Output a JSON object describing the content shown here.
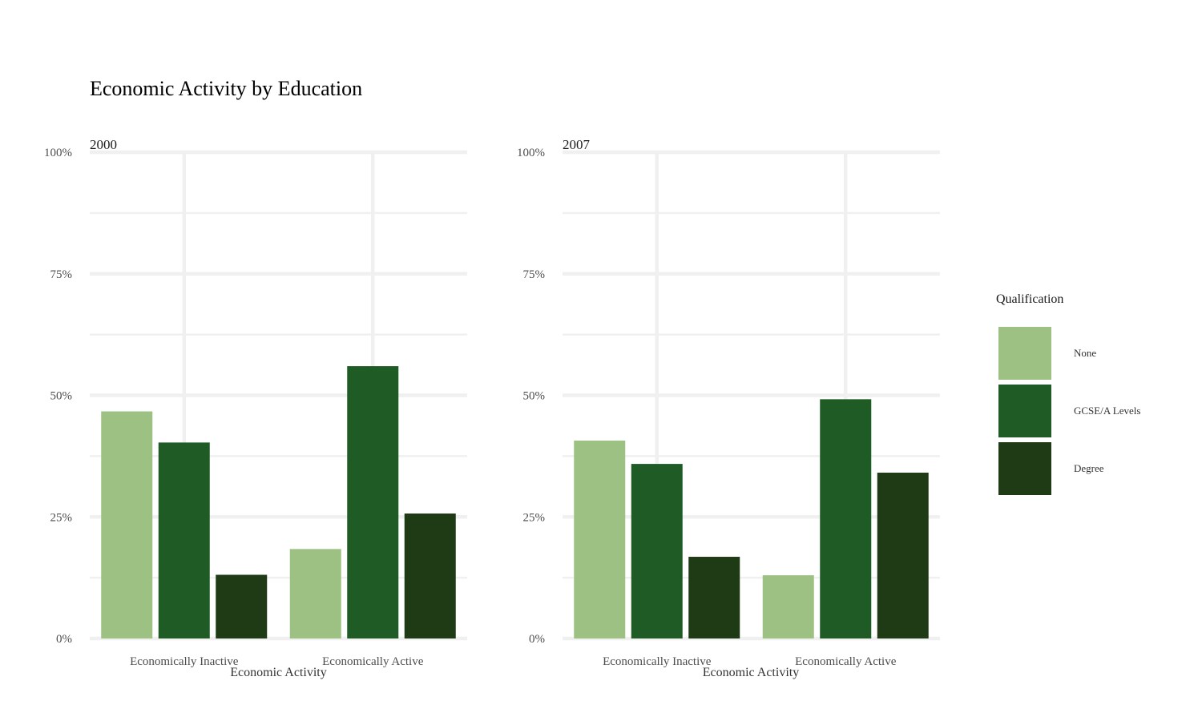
{
  "chart_data": {
    "type": "bar",
    "title": "Economic Activity by Education",
    "xlabel": "Economic Activity",
    "ylabel": "",
    "ylim": [
      0,
      1
    ],
    "y_ticks": [
      "0%",
      "25%",
      "50%",
      "75%",
      "100%"
    ],
    "grid": true,
    "legend": {
      "title": "Qualification",
      "placement": "right",
      "entries": [
        "None",
        "GCSE/A Levels",
        "Degree"
      ]
    },
    "categories": [
      "Economically Inactive",
      "Economically Active"
    ],
    "panels": [
      {
        "label": "2000",
        "series": [
          {
            "name": "None",
            "values": [
              0.467,
              0.184
            ]
          },
          {
            "name": "GCSE/A Levels",
            "values": [
              0.403,
              0.56
            ]
          },
          {
            "name": "Degree",
            "values": [
              0.131,
              0.257
            ]
          }
        ]
      },
      {
        "label": "2007",
        "series": [
          {
            "name": "None",
            "values": [
              0.407,
              0.13
            ]
          },
          {
            "name": "GCSE/A Levels",
            "values": [
              0.359,
              0.492
            ]
          },
          {
            "name": "Degree",
            "values": [
              0.168,
              0.341
            ]
          }
        ]
      }
    ],
    "colors": {
      "None": "#9dc183",
      "GCSE/A Levels": "#1f5b25",
      "Degree": "#1e3b15",
      "grid": "#f0f0f0"
    }
  }
}
